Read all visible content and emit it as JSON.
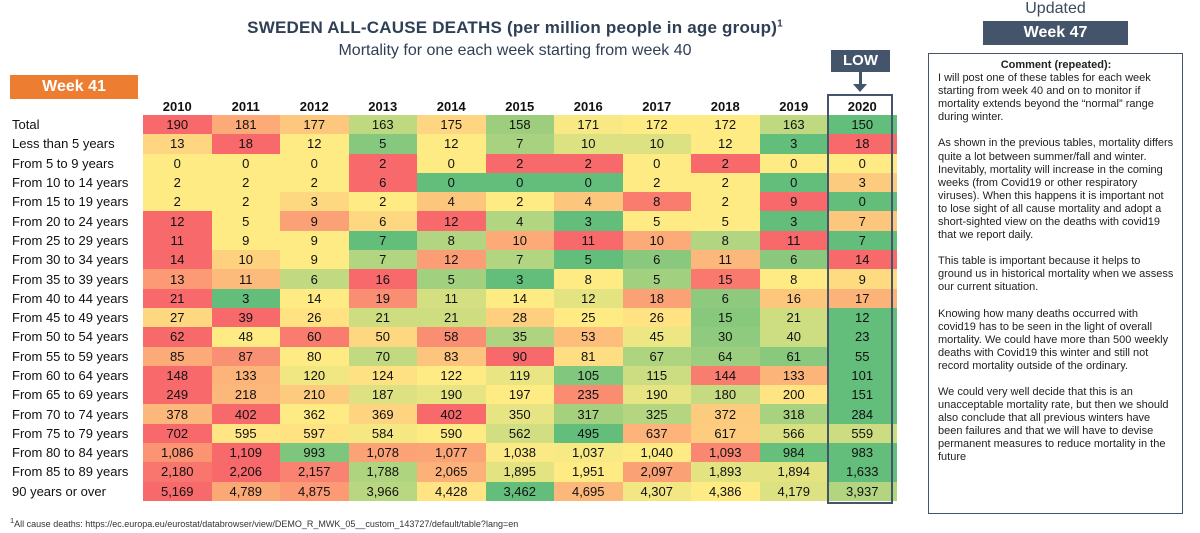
{
  "header": {
    "title": "SWEDEN ALL-CAUSE DEATHS (per million people in age group)",
    "title_sup": "1",
    "subtitle": "Mortality for one each week starting from week 40",
    "updated_label": "Updated",
    "updated_week": "Week 47",
    "week_badge": "Week 41",
    "low_label": "LOW"
  },
  "comment": {
    "heading": "Comment (repeated):",
    "paragraphs": [
      "I will post one of these tables for each week starting from week 40 and on to monitor if mortality extends beyond the “normal” range during winter.",
      "As shown in the previous tables, mortality differs quite a lot between summer/fall and winter. Inevitably, mortality will increase in the coming weeks (from Covid19 or other respiratory viruses). When this happens it is important not to lose sight of all cause mortality and adopt a short-sighted view on the deaths with covid19 that we report daily.",
      "This table is important because it helps to ground us in historical mortality when we assess our current situation.",
      "Knowing how many deaths occurred with covid19 has to be seen in the light of overall mortality. We could have more than 500 weekly deaths with Covid19 this winter and still not record mortality outside of the ordinary.",
      "We could very well decide that this is an unacceptable mortality rate, but then we should also conclude that all previous winters have been failures and that we will have to devise permanent measures to reduce mortality in the future"
    ]
  },
  "footnote": {
    "sup": "1",
    "text": "All cause deaths: https://ec.europa.eu/eurostat/databrowser/view/DEMO_R_MWK_05__custom_143727/default/table?lang=en"
  },
  "colors": {
    "high": "#f8696b",
    "mid": "#ffeb84",
    "low": "#63be7b",
    "frame": "#44546a",
    "badge_orange": "#ed7d31"
  },
  "chart_data": {
    "type": "heatmap",
    "title": "SWEDEN ALL-CAUSE DEATHS (per million people in age group)",
    "subtitle": "Mortality for one each week starting from week 40",
    "color_scale": "per row: red = highest, yellow = middle, green = lowest",
    "columns": [
      "2010",
      "2011",
      "2012",
      "2013",
      "2014",
      "2015",
      "2016",
      "2017",
      "2018",
      "2019",
      "2020"
    ],
    "rows": [
      {
        "label": "Total",
        "values": [
          "190",
          "181",
          "177",
          "163",
          "175",
          "158",
          "171",
          "172",
          "172",
          "163",
          "150"
        ]
      },
      {
        "label": "Less than 5 years",
        "values": [
          "13",
          "18",
          "12",
          "5",
          "12",
          "7",
          "10",
          "10",
          "12",
          "3",
          "18"
        ]
      },
      {
        "label": "From 5 to 9 years",
        "values": [
          "0",
          "0",
          "0",
          "2",
          "0",
          "2",
          "2",
          "0",
          "2",
          "0",
          "0"
        ]
      },
      {
        "label": "From 10 to 14 years",
        "values": [
          "2",
          "2",
          "2",
          "6",
          "0",
          "0",
          "0",
          "2",
          "2",
          "0",
          "3"
        ]
      },
      {
        "label": "From 15 to 19 years",
        "values": [
          "2",
          "2",
          "3",
          "2",
          "4",
          "2",
          "4",
          "8",
          "2",
          "9",
          "0"
        ]
      },
      {
        "label": "From 20 to 24 years",
        "values": [
          "12",
          "5",
          "9",
          "6",
          "12",
          "4",
          "3",
          "5",
          "5",
          "3",
          "7"
        ]
      },
      {
        "label": "From 25 to 29 years",
        "values": [
          "11",
          "9",
          "9",
          "7",
          "8",
          "10",
          "11",
          "10",
          "8",
          "11",
          "7"
        ]
      },
      {
        "label": "From 30 to 34 years",
        "values": [
          "14",
          "10",
          "9",
          "7",
          "12",
          "7",
          "5",
          "6",
          "11",
          "6",
          "14"
        ]
      },
      {
        "label": "From 35 to 39 years",
        "values": [
          "13",
          "11",
          "6",
          "16",
          "5",
          "3",
          "8",
          "5",
          "15",
          "8",
          "9"
        ]
      },
      {
        "label": "From 40 to 44 years",
        "values": [
          "21",
          "3",
          "14",
          "19",
          "11",
          "14",
          "12",
          "18",
          "6",
          "16",
          "17"
        ]
      },
      {
        "label": "From 45 to 49 years",
        "values": [
          "27",
          "39",
          "26",
          "21",
          "21",
          "28",
          "25",
          "26",
          "15",
          "21",
          "12"
        ]
      },
      {
        "label": "From 50 to 54 years",
        "values": [
          "62",
          "48",
          "60",
          "50",
          "58",
          "35",
          "53",
          "45",
          "30",
          "40",
          "23"
        ]
      },
      {
        "label": "From 55 to 59 years",
        "values": [
          "85",
          "87",
          "80",
          "70",
          "83",
          "90",
          "81",
          "67",
          "64",
          "61",
          "55"
        ]
      },
      {
        "label": "From 60 to 64 years",
        "values": [
          "148",
          "133",
          "120",
          "124",
          "122",
          "119",
          "105",
          "115",
          "144",
          "133",
          "101"
        ]
      },
      {
        "label": "From 65 to 69 years",
        "values": [
          "249",
          "218",
          "210",
          "187",
          "190",
          "197",
          "235",
          "190",
          "180",
          "200",
          "151"
        ]
      },
      {
        "label": "From 70 to 74 years",
        "values": [
          "378",
          "402",
          "362",
          "369",
          "402",
          "350",
          "317",
          "325",
          "372",
          "318",
          "284"
        ]
      },
      {
        "label": "From 75 to 79 years",
        "values": [
          "702",
          "595",
          "597",
          "584",
          "590",
          "562",
          "495",
          "637",
          "617",
          "566",
          "559"
        ]
      },
      {
        "label": "From 80 to 84 years",
        "values": [
          "1,086",
          "1,109",
          "993",
          "1,078",
          "1,077",
          "1,038",
          "1,037",
          "1,040",
          "1,093",
          "984",
          "983"
        ]
      },
      {
        "label": "From 85 to 89 years",
        "values": [
          "2,180",
          "2,206",
          "2,157",
          "1,788",
          "2,065",
          "1,895",
          "1,951",
          "2,097",
          "1,893",
          "1,894",
          "1,633"
        ]
      },
      {
        "label": "90 years or over",
        "values": [
          "5,169",
          "4,789",
          "4,875",
          "3,966",
          "4,428",
          "3,462",
          "4,695",
          "4,307",
          "4,386",
          "4,179",
          "3,937"
        ]
      }
    ]
  }
}
